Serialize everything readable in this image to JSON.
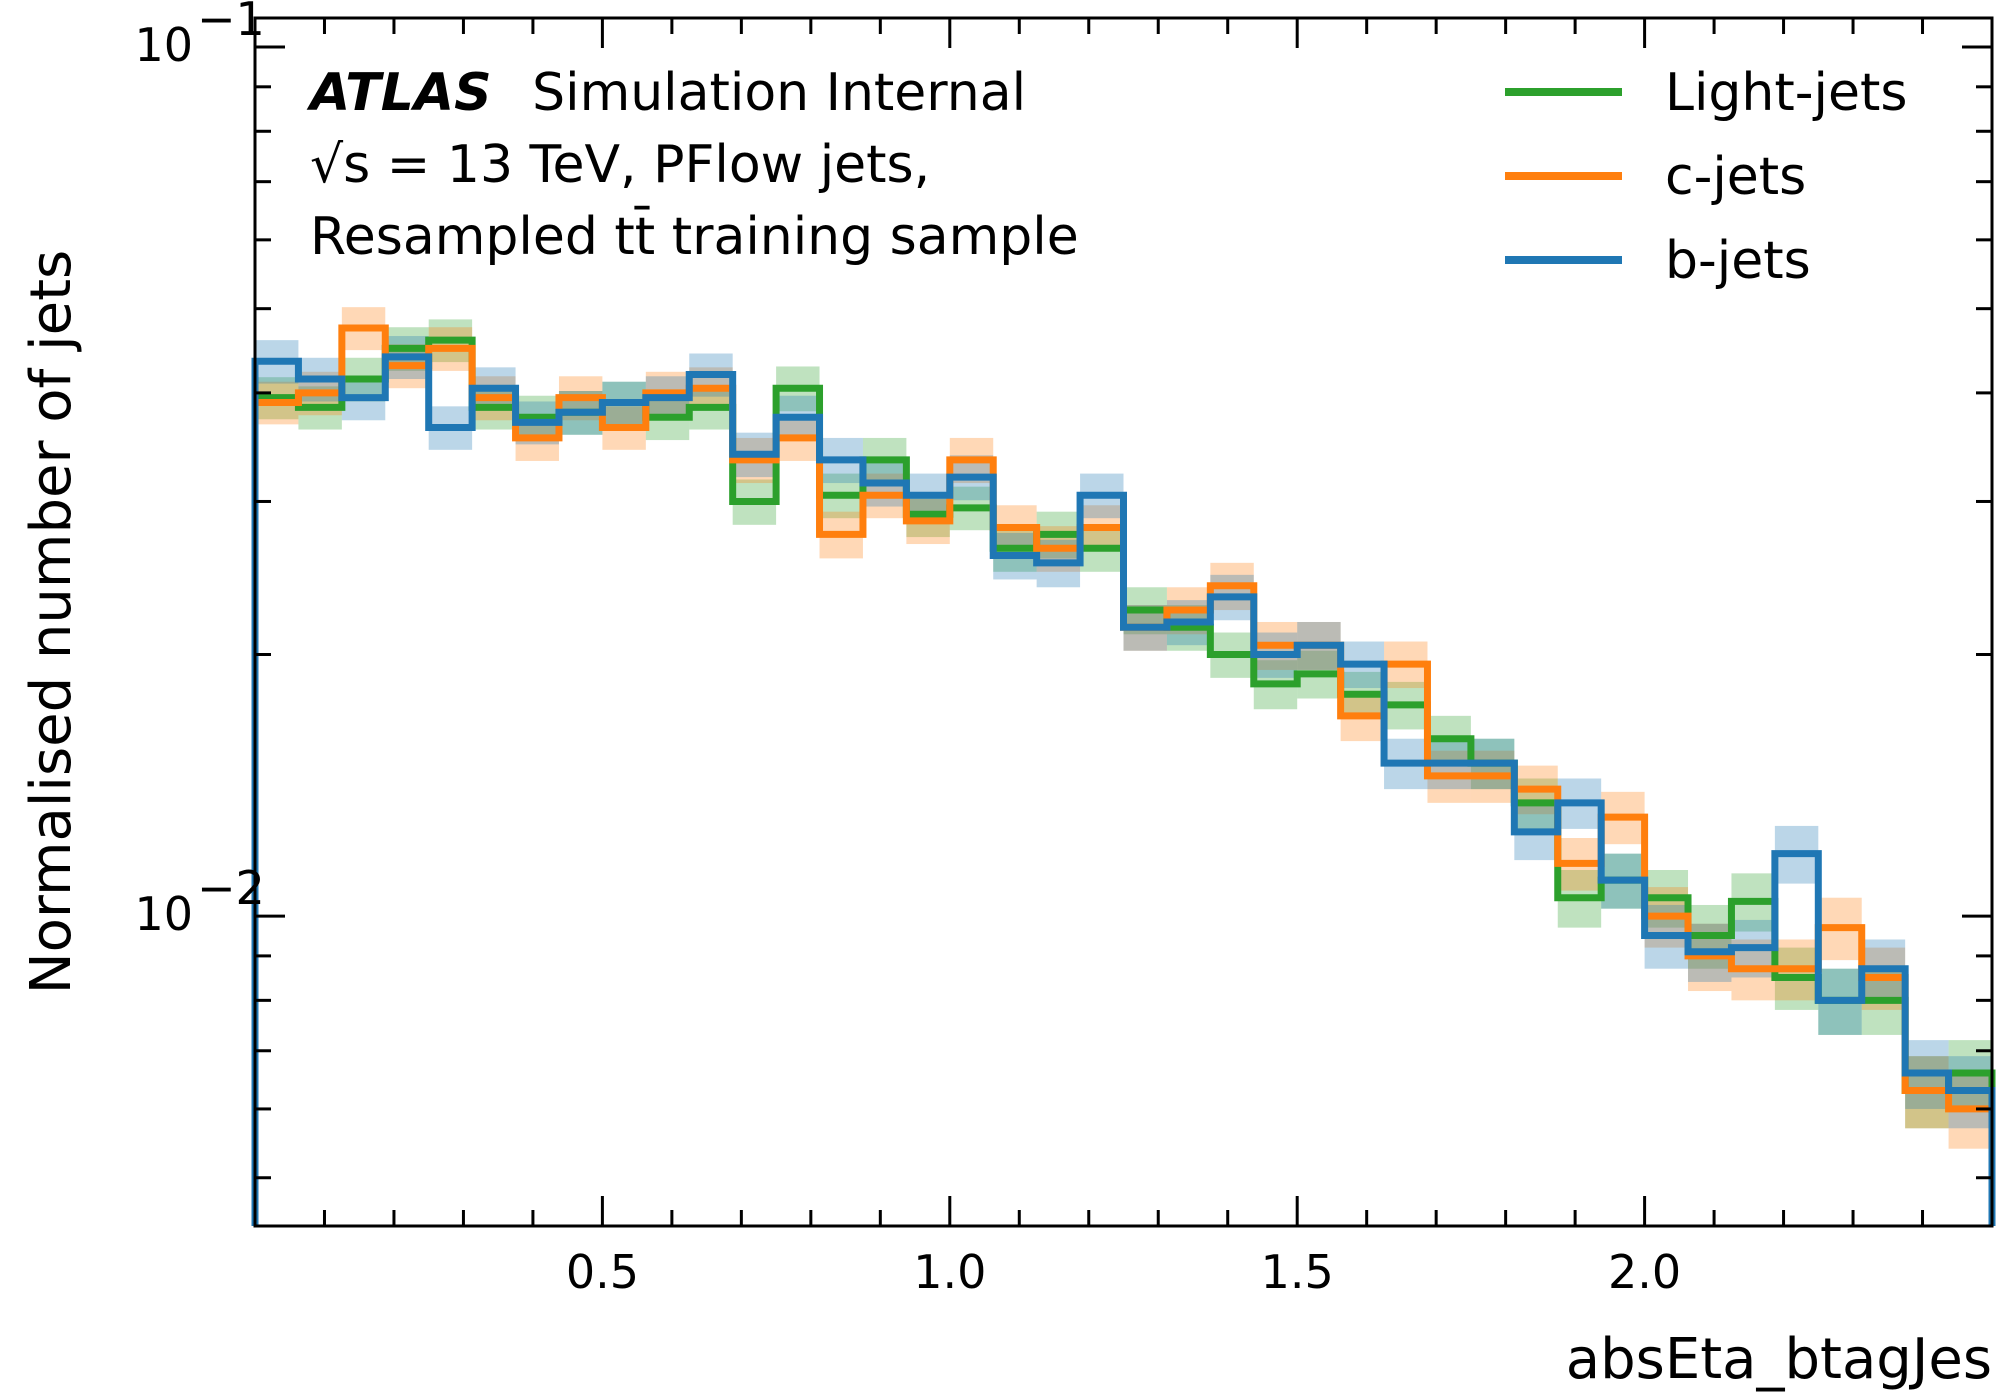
{
  "chart_data": {
    "type": "step",
    "xlabel": "absEta_btagJes",
    "ylabel": "Normalised number of jets",
    "xlim": [
      0.0,
      2.5
    ],
    "ylim": [
      0.0044,
      0.108
    ],
    "yscale": "log",
    "x_ticks": [
      0.5,
      1.0,
      1.5,
      2.0
    ],
    "x_tick_labels": [
      "0.5",
      "1.0",
      "1.5",
      "2.0"
    ],
    "y_tick_labels": {
      "major": [
        "10",
        "10"
      ],
      "exponents": [
        "−1",
        "−2"
      ],
      "values": [
        0.1,
        0.01
      ]
    },
    "legend_position": "top-right",
    "atlas_label": {
      "bold": "ATLAS",
      "rest": "Simulation Internal"
    },
    "info_lines": [
      "√s = 13 TeV, PFlow jets,",
      "Resampled tt̄ training sample"
    ],
    "bin_edges": [
      0.0,
      0.0625,
      0.125,
      0.1875,
      0.25,
      0.3125,
      0.375,
      0.4375,
      0.5,
      0.5625,
      0.625,
      0.6875,
      0.75,
      0.8125,
      0.875,
      0.9375,
      1.0,
      1.0625,
      1.125,
      1.1875,
      1.25,
      1.3125,
      1.375,
      1.4375,
      1.5,
      1.5625,
      1.625,
      1.6875,
      1.75,
      1.8125,
      1.875,
      1.9375,
      2.0,
      2.0625,
      2.125,
      2.1875,
      2.25,
      2.3125,
      2.375,
      2.4375,
      2.5
    ],
    "series": [
      {
        "name": "Light-jets",
        "color": "#2ca02c",
        "values": [
          0.0395,
          0.0385,
          0.0415,
          0.045,
          0.046,
          0.0385,
          0.0375,
          0.038,
          0.039,
          0.0375,
          0.0385,
          0.03,
          0.0405,
          0.0305,
          0.0335,
          0.029,
          0.0295,
          0.0265,
          0.0275,
          0.0265,
          0.0225,
          0.0215,
          0.02,
          0.0185,
          0.019,
          0.018,
          0.0175,
          0.016,
          0.015,
          0.0135,
          0.0105,
          0.011,
          0.0105,
          0.0095,
          0.0104,
          0.0085,
          0.008,
          0.008,
          0.0063,
          0.0066
        ],
        "errors": [
          0.0022,
          0.0022,
          0.0024,
          0.0026,
          0.0026,
          0.0022,
          0.0022,
          0.0022,
          0.0022,
          0.0022,
          0.0022,
          0.0018,
          0.0024,
          0.0018,
          0.002,
          0.0017,
          0.0017,
          0.0016,
          0.0017,
          0.0016,
          0.0014,
          0.0013,
          0.0012,
          0.0012,
          0.0012,
          0.0011,
          0.0011,
          0.001,
          0.001,
          0.0009,
          0.0008,
          0.0008,
          0.0008,
          0.0008,
          0.0008,
          0.0007,
          0.0007,
          0.0007,
          0.0006,
          0.0006
        ]
      },
      {
        "name": "c-jets",
        "color": "#ff7f0e",
        "values": [
          0.039,
          0.04,
          0.0475,
          0.043,
          0.045,
          0.0395,
          0.0355,
          0.0395,
          0.0365,
          0.04,
          0.0405,
          0.0335,
          0.0355,
          0.0275,
          0.0305,
          0.0285,
          0.0335,
          0.028,
          0.0265,
          0.028,
          0.0215,
          0.0225,
          0.024,
          0.0205,
          0.0205,
          0.017,
          0.0195,
          0.0145,
          0.0145,
          0.014,
          0.0115,
          0.013,
          0.01,
          0.009,
          0.0087,
          0.0087,
          0.0097,
          0.0085,
          0.0063,
          0.006
        ],
        "errors": [
          0.0022,
          0.0023,
          0.0027,
          0.0025,
          0.0026,
          0.0023,
          0.0021,
          0.0023,
          0.0021,
          0.0023,
          0.0023,
          0.002,
          0.0021,
          0.0017,
          0.0018,
          0.0017,
          0.002,
          0.0017,
          0.0016,
          0.0017,
          0.0013,
          0.0014,
          0.0015,
          0.0013,
          0.0013,
          0.0011,
          0.0012,
          0.001,
          0.001,
          0.0009,
          0.0008,
          0.0009,
          0.0008,
          0.0008,
          0.0007,
          0.0007,
          0.0008,
          0.0007,
          0.0006,
          0.0006
        ]
      },
      {
        "name": "b-jets",
        "color": "#1f77b4",
        "values": [
          0.0435,
          0.0415,
          0.0395,
          0.044,
          0.0365,
          0.0405,
          0.037,
          0.038,
          0.039,
          0.0395,
          0.042,
          0.034,
          0.0375,
          0.0335,
          0.0315,
          0.0305,
          0.032,
          0.026,
          0.0255,
          0.0305,
          0.0215,
          0.0218,
          0.0233,
          0.02,
          0.0205,
          0.0195,
          0.015,
          0.015,
          0.015,
          0.0125,
          0.0135,
          0.011,
          0.0095,
          0.0091,
          0.0092,
          0.0118,
          0.008,
          0.0087,
          0.0066,
          0.0063
        ],
        "errors": [
          0.0025,
          0.0024,
          0.0023,
          0.0025,
          0.0021,
          0.0023,
          0.0021,
          0.0022,
          0.0022,
          0.0023,
          0.0024,
          0.002,
          0.0022,
          0.002,
          0.0019,
          0.0018,
          0.0019,
          0.0016,
          0.0016,
          0.0018,
          0.0013,
          0.0013,
          0.0014,
          0.0012,
          0.0013,
          0.0012,
          0.001,
          0.001,
          0.001,
          0.0009,
          0.0009,
          0.0008,
          0.0008,
          0.0007,
          0.0007,
          0.0009,
          0.0007,
          0.0007,
          0.0006,
          0.0006
        ]
      }
    ]
  }
}
